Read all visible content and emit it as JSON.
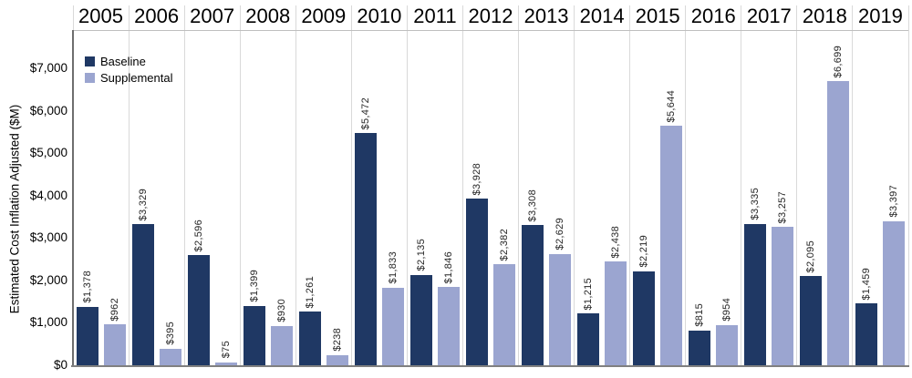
{
  "chart_data": {
    "type": "bar",
    "title": "",
    "ylabel": "Estimated Cost Inflation Adjusted ($M)",
    "xlabel": "",
    "categories": [
      "2005",
      "2006",
      "2007",
      "2008",
      "2009",
      "2010",
      "2011",
      "2012",
      "2013",
      "2014",
      "2015",
      "2016",
      "2017",
      "2018",
      "2019"
    ],
    "series": [
      {
        "name": "Baseline",
        "color": "#1F3864",
        "values": [
          1378,
          3329,
          2596,
          1399,
          1261,
          5472,
          2135,
          3928,
          3308,
          1215,
          2219,
          815,
          3335,
          2095,
          1459
        ]
      },
      {
        "name": "Supplemental",
        "color": "#9BA5D0",
        "values": [
          962,
          395,
          75,
          930,
          238,
          1833,
          1846,
          2382,
          2629,
          2438,
          5644,
          954,
          3257,
          6699,
          3397
        ]
      }
    ],
    "data_labels": [
      [
        "$1,378",
        "$3,329",
        "$2,596",
        "$1,399",
        "$1,261",
        "$5,472",
        "$2,135",
        "$3,928",
        "$3,308",
        "$1,215",
        "$2,219",
        "$815",
        "$3,335",
        "$2,095",
        "$1,459"
      ],
      [
        "$962",
        "$395",
        "$75",
        "$930",
        "$238",
        "$1,833",
        "$1,846",
        "$2,382",
        "$2,629",
        "$2,438",
        "$5,644",
        "$954",
        "$3,257",
        "$6,699",
        "$3,397"
      ]
    ],
    "y_ticks": [
      "$0",
      "$1,000",
      "$2,000",
      "$3,000",
      "$4,000",
      "$5,000",
      "$6,000",
      "$7,000"
    ],
    "ylim": [
      0,
      7900
    ],
    "legend_position": "top-left",
    "grid": "vertical-category-separators",
    "value_label_format": "$#,##0 rotated 90deg"
  }
}
